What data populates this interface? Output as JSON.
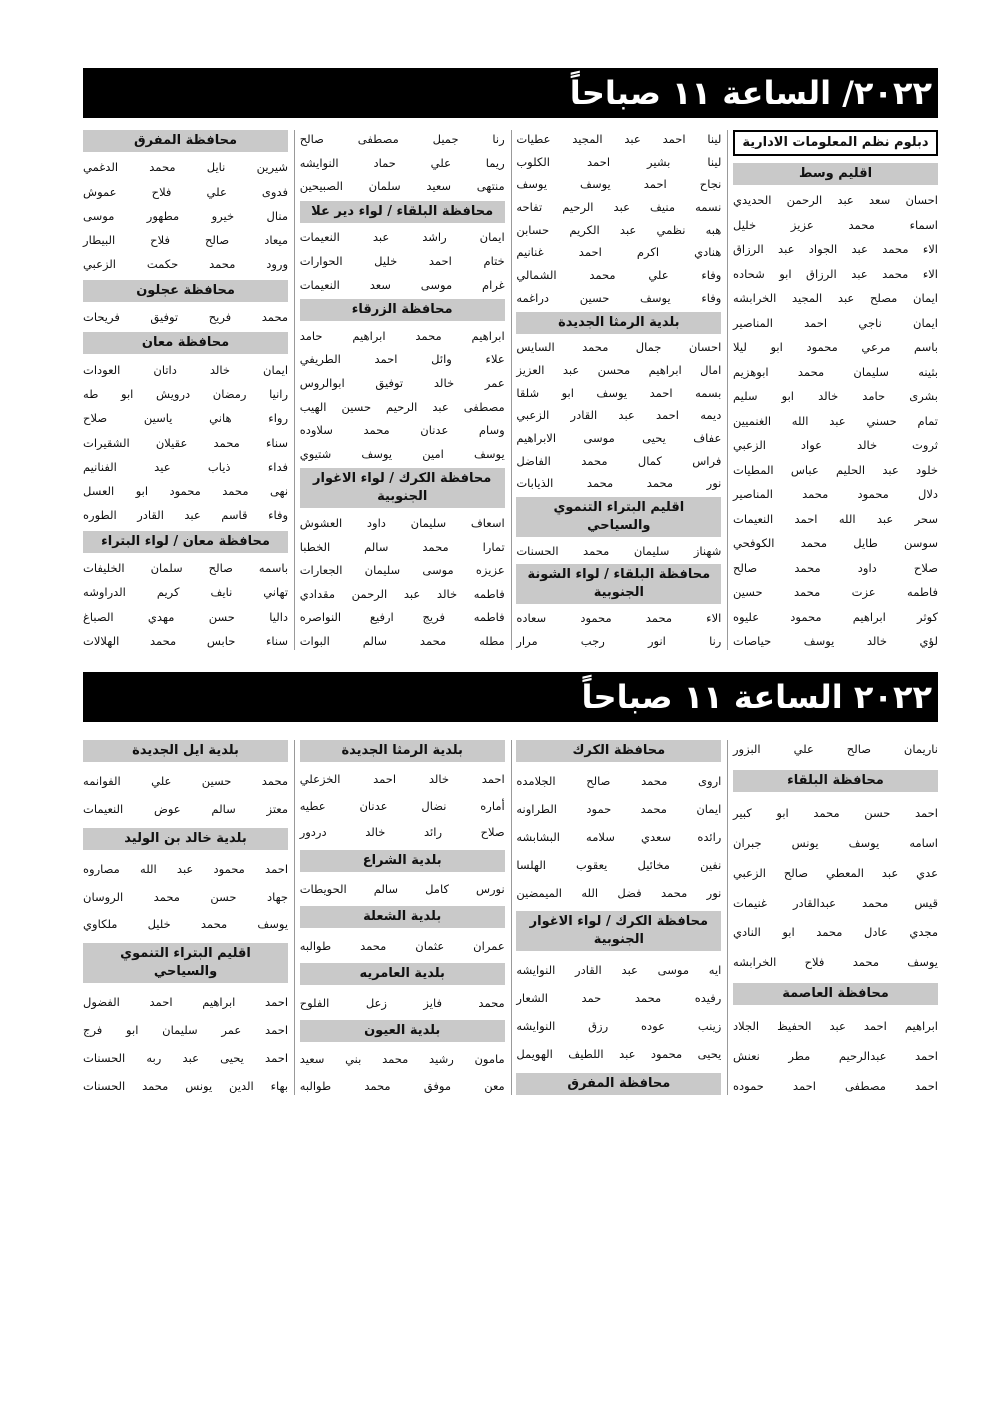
{
  "sections": [
    {
      "banner": "٢٠٢٢/ الساعة ١١ صباحاً",
      "columns": [
        [
          {
            "heading": "دبلوم نظم المعلومات الادارية"
          },
          {
            "heading": "اقليم وسط"
          },
          {
            "name": "احسان سعد عبد الرحمن الحديدي"
          },
          {
            "name": "اسماء محمد عزيز خليل"
          },
          {
            "name": "الاء محمد عبد الجواد عبد الرزاق"
          },
          {
            "name": "الاء محمد عبد الرزاق ابو شحاده"
          },
          {
            "name": "ايمان مصلح عبد المجيد الخرابشه"
          },
          {
            "name": "ايمان ناجي احمد المناصير"
          },
          {
            "name": "باسم مرعي محمود ابو ليلا"
          },
          {
            "name": "بثينه سليمان محمد ابوهزيم"
          },
          {
            "name": "بشرى حامد خالد ابو سليم"
          },
          {
            "name": "تمام حسني عبد الله الغنميين"
          },
          {
            "name": "ثروت خالد عواد الزعبي"
          },
          {
            "name": "خلود عبد الحليم عباس المطيات"
          },
          {
            "name": "دلال محمود محمد المناصير"
          },
          {
            "name": "سحر عبد الله احمد النعيمات"
          },
          {
            "name": "سوسن طايل محمد الكوفحي"
          },
          {
            "name": "صلاح داود محمد صالح"
          },
          {
            "name": "فاطمه عزت محمد حسين"
          },
          {
            "name": "كوثر ابراهيم محمود عليوه"
          },
          {
            "name": "لؤي خالد يوسف حياصات"
          }
        ],
        [
          {
            "name": "لينا احمد عبد المجيد عطيات"
          },
          {
            "name": "لينا بشير احمد الكلوب"
          },
          {
            "name": "نجاح احمد يوسف يوسف"
          },
          {
            "name": "نسمه منيف عبد الرحيم تفاحه"
          },
          {
            "name": "هبه نظمي عبد الكريم حسابن"
          },
          {
            "name": "هنادي اكرم احمد غنانيم"
          },
          {
            "name": "وفاء علي محمد الشمالي"
          },
          {
            "name": "وفاء يوسف حسين دراغمه"
          },
          {
            "heading": "بلدية الرمثا الجديدة"
          },
          {
            "name": "احسان جمال محمد السايس"
          },
          {
            "name": "امال ابراهيم محسن عبد العزيز"
          },
          {
            "name": "بسمه احمد يوسف ابو شلقا"
          },
          {
            "name": "ديمه احمد عبد القادر الزعبي"
          },
          {
            "name": "عفاف يحيى موسى الابراهيم"
          },
          {
            "name": "فراس كمال محمد الفاضل"
          },
          {
            "name": "نور محمد محمد الذيابات"
          },
          {
            "heading": "اقليم البتراء التنموي والسياحي"
          },
          {
            "name": "شهناز سليمان محمد الحسنات"
          },
          {
            "heading": "محافظة البلقاء / لواء الشونة الجنوبية"
          },
          {
            "name": "الاء محمد محمود سعاده"
          },
          {
            "name": "رنا انور رجب مرار"
          }
        ],
        [
          {
            "name": "رنا جميل مصطفى صالح"
          },
          {
            "name": "ريما علي حماد النوايشه"
          },
          {
            "name": "منتهى سعيد سلمان الصبيحين"
          },
          {
            "heading": "محافظة البلقاء / لواء دير علا"
          },
          {
            "name": "ايمان راشد عبد النعيمات"
          },
          {
            "name": "ختام احمد خليل الحوارات"
          },
          {
            "name": "غرام موسى سعد النعيمات"
          },
          {
            "heading": "محافظة الزرقاء"
          },
          {
            "name": "ابراهيم محمد ابراهيم حامد"
          },
          {
            "name": "علاء وائل احمد الطريفي"
          },
          {
            "name": "عمر خالد توفيق ابوالروس"
          },
          {
            "name": "مصطفى عبد الرحيم حسين الهيب"
          },
          {
            "name": "وسام عدنان محمد سلاوده"
          },
          {
            "name": "يوسف امين يوسف شتيوي"
          },
          {
            "heading": "محافظة الكرك / لواء الاغوار الجنوبية"
          },
          {
            "name": "اسعاف سليمان داود العشوش"
          },
          {
            "name": "تمارا محمد سالم الخطبا"
          },
          {
            "name": "عزيزه موسى سليمان الجعارات"
          },
          {
            "name": "فاطمه خالد عبد الرحمن مقدادي"
          },
          {
            "name": "فاطمه فريج ارفيع النواصره"
          },
          {
            "name": "مطله محمد سالم البوات"
          }
        ],
        [
          {
            "heading": "محافظة المفرق"
          },
          {
            "name": "شيرين نايل محمد الدغمي"
          },
          {
            "name": "فدوى علي فلاح عموش"
          },
          {
            "name": "منال خيرو مطهور موسى"
          },
          {
            "name": "ميعاد صالح فلاح البيطار"
          },
          {
            "name": "ورود محمد حكمت الزعبي"
          },
          {
            "heading": "محافظة عجلون"
          },
          {
            "name": "محمد فريح توفيق فريحات"
          },
          {
            "heading": "محافظة معان"
          },
          {
            "name": "ايمان خالد داتان العودات"
          },
          {
            "name": "رانيا رمضان درويش ابو طه"
          },
          {
            "name": "رواء هاني ياسين صلاح"
          },
          {
            "name": "سناء محمد عقيلان الشقيرات"
          },
          {
            "name": "فداء ذياب عيد الفنانيم"
          },
          {
            "name": "نهى محمد محمود ابو العسل"
          },
          {
            "name": "وفاء قاسم عبد القادر الطوره"
          },
          {
            "heading": "محافظة معان / لواء البتراء"
          },
          {
            "name": "باسمه صالح سلمان الخليفات"
          },
          {
            "name": "تهاني نايف كريم الدراوشه"
          },
          {
            "name": "داليا حسن مهدي الصباغ"
          },
          {
            "name": "سناء حابس محمد الهلالات"
          }
        ]
      ]
    },
    {
      "banner": "٢٠٢٢ الساعة ١١ صباحاً",
      "columns": [
        [
          {
            "name": "ناريمان صالح علي البزور"
          },
          {
            "heading": "محافظة البلقاء"
          },
          {
            "name": "احمد حسن محمد ابو كبير"
          },
          {
            "name": "اسامه يوسف يونس جبران"
          },
          {
            "name": "عدي عبد المعطي صالح الزعبي"
          },
          {
            "name": "قيس محمد عبدالقادر غنيمات"
          },
          {
            "name": "مجدي عادل محمد ابو النادي"
          },
          {
            "name": "يوسف محمد فلاح الخرابشه"
          },
          {
            "heading": "محافظة العاصمة"
          },
          {
            "name": "ابراهيم احمد عبد الحفيظ الجلاد"
          },
          {
            "name": "احمد عبدالرحيم مطر نعنش"
          },
          {
            "name": "احمد مصطفى احمد حموده"
          }
        ],
        [
          {
            "heading": "محافظة الكرك"
          },
          {
            "name": "اروى محمد صالح الجلامده"
          },
          {
            "name": "ايمان محمد حمود الطراونه"
          },
          {
            "name": "رائده سعدي سلامه البشابشه"
          },
          {
            "name": "نفين مخائيل يعقوب الهلسا"
          },
          {
            "name": "نور محمد فضل الله الميمضين"
          },
          {
            "heading": "محافظة الكرك / لواء الاغوار الجنوبية"
          },
          {
            "name": "ايه موسى عبد القادر النوايشه"
          },
          {
            "name": "رفيده محمد حمد الشعار"
          },
          {
            "name": "زينب عوده رزق النوايشه"
          },
          {
            "name": "يحيى محمود عبد اللطيف الهويمل"
          },
          {
            "heading": "محافظة المفرق"
          }
        ],
        [
          {
            "heading": "بلدية الرمثا الجديدة"
          },
          {
            "name": "احمد خالد احمد الخزعلي"
          },
          {
            "name": "أماره نضال عدنان عطيه"
          },
          {
            "name": "صلاح رائد خالد دردور"
          },
          {
            "heading": "بلدية الشراع"
          },
          {
            "name": "نورس كامل سالم الحويطات"
          },
          {
            "heading": "بلدية الشعلة"
          },
          {
            "name": "عمران عثمان محمد طوالبه"
          },
          {
            "heading": "بلدية العامريه"
          },
          {
            "name": "محمد فايز زعل الفلوح"
          },
          {
            "heading": "بلدية العيون"
          },
          {
            "name": "مامون رشيد محمد بني سعيد"
          },
          {
            "name": "معن موفق محمد طوالبه"
          }
        ],
        [
          {
            "heading": "بلدية ايل الجديدة"
          },
          {
            "name": "محمد حسين علي الفوانمه"
          },
          {
            "name": "معتز سالم عوض النعيمات"
          },
          {
            "heading": "بلدية خالد بن الوليد"
          },
          {
            "name": "احمد محمود عبد الله مصاروه"
          },
          {
            "name": "جهاد حسن محمد الروسان"
          },
          {
            "name": "يوسف محمد خليل ملكاوي"
          },
          {
            "heading": "اقليم البتراء التنموي والسياحي"
          },
          {
            "name": "احمد ابراهيم احمد الفضول"
          },
          {
            "name": "احمد عمر سليمان ابو فرج"
          },
          {
            "name": "احمد يحيى عبد ربه الحسنات"
          },
          {
            "name": "بهاء الدين يونس محمد الحسنات"
          }
        ]
      ]
    }
  ]
}
